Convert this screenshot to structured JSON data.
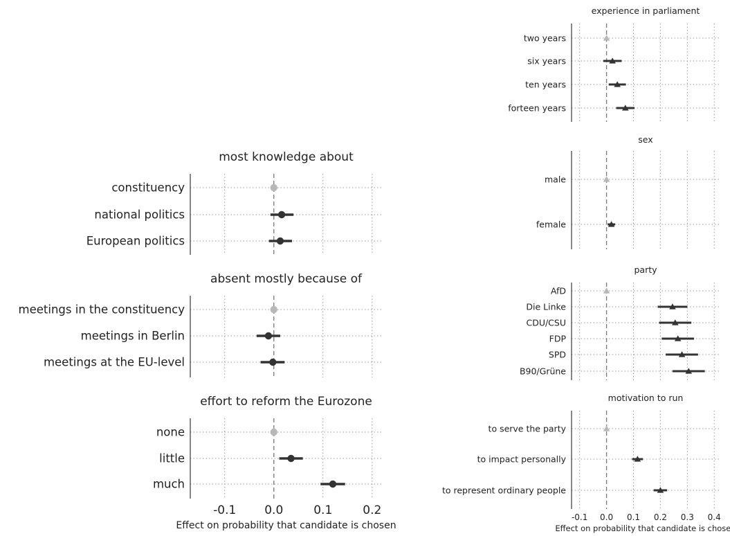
{
  "chart_data": [
    {
      "type": "scatter",
      "title": "most knowledge about",
      "categories": [
        "constituency",
        "national politics",
        "European politics"
      ],
      "estimates": [
        0.0,
        0.016,
        0.013
      ],
      "ci_low": [
        0.0,
        -0.007,
        -0.01
      ],
      "ci_high": [
        0.0,
        0.04,
        0.037
      ],
      "reference": [
        true,
        false,
        false
      ],
      "marker": "circle",
      "xlim": [
        -0.17,
        0.22
      ]
    },
    {
      "type": "scatter",
      "title": "absent mostly because of",
      "categories": [
        "meetings in the constituency",
        "meetings in Berlin",
        "meetings at the EU-level"
      ],
      "estimates": [
        0.0,
        -0.011,
        -0.002
      ],
      "ci_low": [
        0.0,
        -0.035,
        -0.027
      ],
      "ci_high": [
        0.0,
        0.013,
        0.022
      ],
      "reference": [
        true,
        false,
        false
      ],
      "marker": "circle",
      "xlim": [
        -0.17,
        0.22
      ]
    },
    {
      "type": "scatter",
      "title": "effort to reform the Eurozone",
      "categories": [
        "none",
        "little",
        "much"
      ],
      "estimates": [
        0.0,
        0.035,
        0.12
      ],
      "ci_low": [
        0.0,
        0.011,
        0.095
      ],
      "ci_high": [
        0.0,
        0.059,
        0.145
      ],
      "reference": [
        true,
        false,
        false
      ],
      "marker": "circle",
      "xlim": [
        -0.17,
        0.22
      ],
      "xticks": [
        "-0.1",
        "0.0",
        "0.1",
        "0.2"
      ],
      "xlabel": "Effect on probability that candidate is chosen"
    },
    {
      "type": "scatter",
      "title": "experience in parliament",
      "categories": [
        "two years",
        "six years",
        "ten years",
        "forteen years"
      ],
      "estimates": [
        0.0,
        0.022,
        0.04,
        0.07
      ],
      "ci_low": [
        0.0,
        -0.012,
        0.008,
        0.036
      ],
      "ci_high": [
        0.0,
        0.056,
        0.072,
        0.104
      ],
      "reference": [
        true,
        false,
        false,
        false
      ],
      "marker": "triangle",
      "xlim": [
        -0.13,
        0.42
      ]
    },
    {
      "type": "scatter",
      "title": "sex",
      "categories": [
        "male",
        "female"
      ],
      "estimates": [
        0.0,
        0.018
      ],
      "ci_low": [
        0.0,
        0.004
      ],
      "ci_high": [
        0.0,
        0.032
      ],
      "reference": [
        true,
        false
      ],
      "marker": "triangle",
      "xlim": [
        -0.13,
        0.42
      ]
    },
    {
      "type": "scatter",
      "title": "party",
      "categories": [
        "AfD",
        "Die Linke",
        "CDU/CSU",
        "FDP",
        "SPD",
        "B90/Grüne"
      ],
      "estimates": [
        0.0,
        0.245,
        0.255,
        0.265,
        0.28,
        0.305
      ],
      "ci_low": [
        0.0,
        0.19,
        0.195,
        0.205,
        0.22,
        0.245
      ],
      "ci_high": [
        0.0,
        0.3,
        0.315,
        0.325,
        0.34,
        0.365
      ],
      "reference": [
        true,
        false,
        false,
        false,
        false,
        false
      ],
      "marker": "triangle",
      "xlim": [
        -0.13,
        0.42
      ]
    },
    {
      "type": "scatter",
      "title": "motivation to run",
      "categories": [
        "to serve the party",
        "to impact personally",
        "to represent ordinary people"
      ],
      "estimates": [
        0.0,
        0.115,
        0.2
      ],
      "ci_low": [
        0.0,
        0.095,
        0.175
      ],
      "ci_high": [
        0.0,
        0.135,
        0.225
      ],
      "reference": [
        true,
        false,
        false
      ],
      "marker": "triangle",
      "xlim": [
        -0.13,
        0.42
      ],
      "xticks": [
        "-0.1",
        "0.0",
        "0.1",
        "0.2",
        "0.3",
        "0.4"
      ],
      "xlabel": "Effect on probability that candidate is chosen"
    }
  ],
  "colors": {
    "reference": "#b8b8b8",
    "estimate": "#333333",
    "grid": "#9a9a9a",
    "axis": "#444444",
    "zero_line": "#777777"
  }
}
